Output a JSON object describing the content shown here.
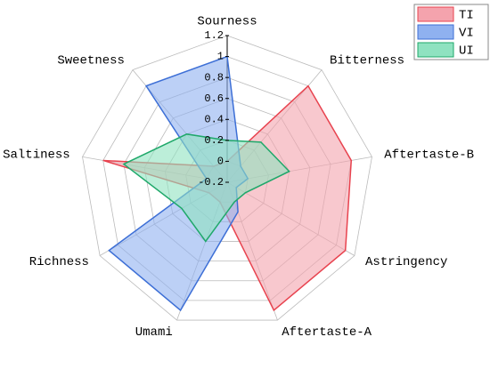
{
  "chart_data": {
    "type": "radar",
    "categories": [
      "Sourness",
      "Bitterness",
      "Aftertaste-B",
      "Astringency",
      "Aftertaste-A",
      "Umami",
      "Richness",
      "Saltiness",
      "Sweetness"
    ],
    "series": [
      {
        "name": "TI",
        "color": "#e8434f",
        "fill": "#f4a3ad",
        "values": [
          0.0,
          1.0,
          1.0,
          1.1,
          1.1,
          0.0,
          0.0,
          1.0,
          0.0
        ]
      },
      {
        "name": "VI",
        "color": "#3d6fd6",
        "fill": "#8fb1f0",
        "values": [
          1.0,
          0.0,
          0.0,
          -0.1,
          0.1,
          1.1,
          1.1,
          0.0,
          1.0
        ]
      },
      {
        "name": "UI",
        "color": "#1fa86a",
        "fill": "#8fe2c0",
        "values": [
          0.2,
          0.3,
          0.4,
          0.0,
          0.0,
          0.4,
          0.3,
          0.8,
          0.4
        ]
      }
    ],
    "rlim": [
      -0.2,
      1.2
    ],
    "rticks": [
      -0.2,
      0.0,
      0.2,
      0.4,
      0.6,
      0.8,
      1.0,
      1.2
    ],
    "grid": true,
    "legend": "upper right"
  }
}
